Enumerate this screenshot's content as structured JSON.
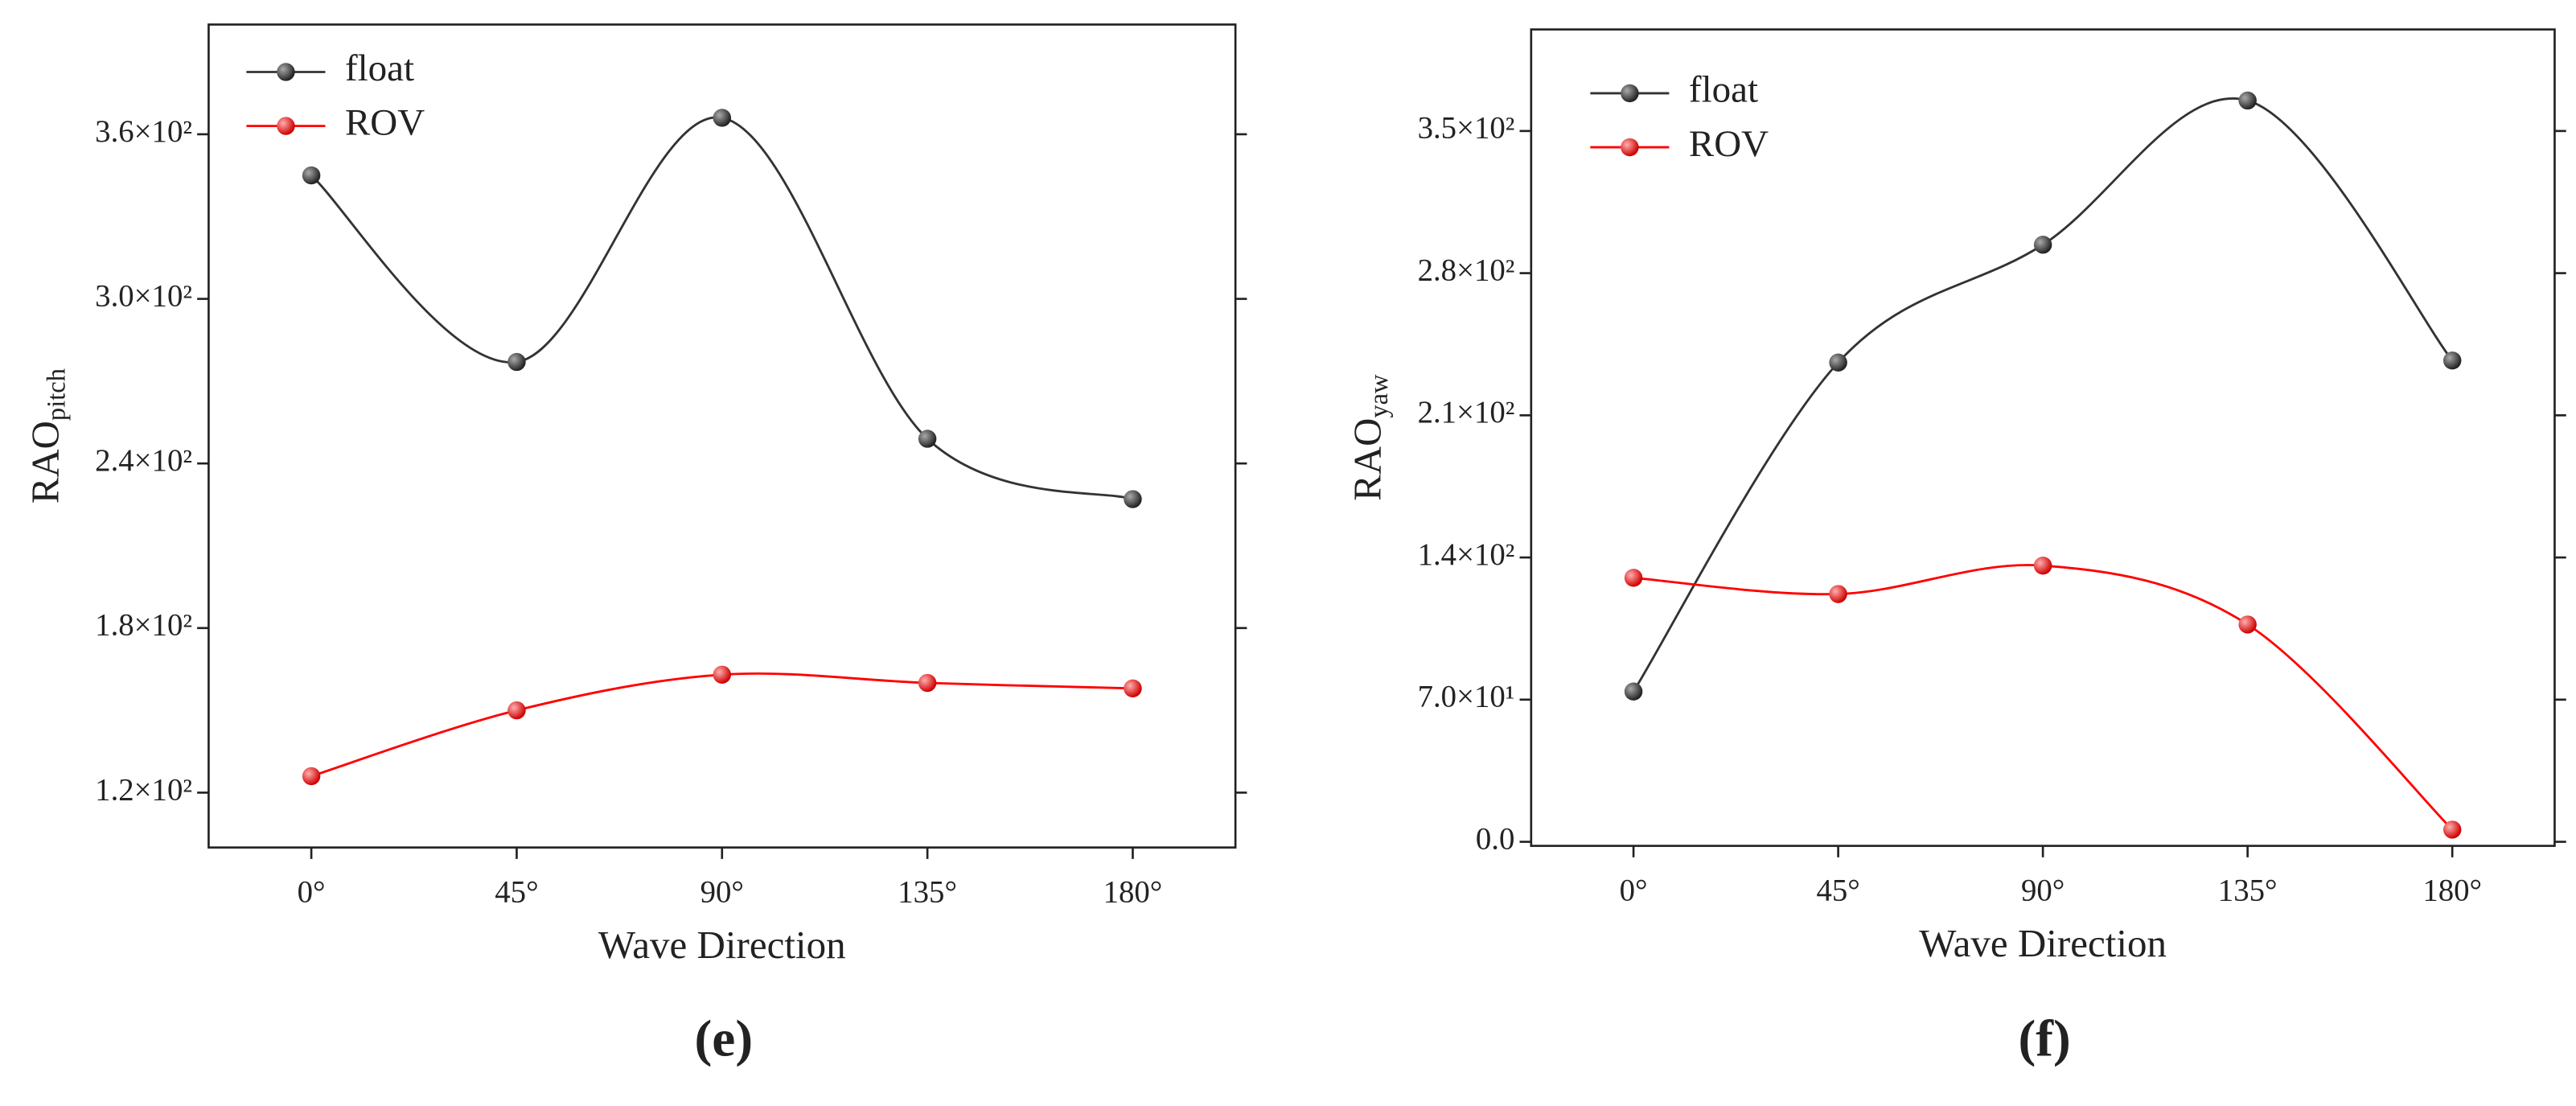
{
  "chart_data": [
    {
      "type": "line",
      "panel": "(e)",
      "xlabel": "Wave Direction",
      "ylabel": {
        "main": "RAO",
        "sub": "pitch"
      },
      "x": [
        0,
        45,
        90,
        135,
        180
      ],
      "xlim": [
        -22.5,
        202.5
      ],
      "xticks": [
        {
          "value": 0,
          "label": "0°"
        },
        {
          "value": 45,
          "label": "45°"
        },
        {
          "value": 90,
          "label": "90°"
        },
        {
          "value": 135,
          "label": "135°"
        },
        {
          "value": 180,
          "label": "180°"
        }
      ],
      "ylim": [
        100,
        400
      ],
      "yticks": [
        {
          "value": 120,
          "label": "1.2×10²"
        },
        {
          "value": 180,
          "label": "1.8×10²"
        },
        {
          "value": 240,
          "label": "2.4×10²"
        },
        {
          "value": 300,
          "label": "3.0×10²"
        },
        {
          "value": 360,
          "label": "3.6×10²"
        }
      ],
      "legend": "upper left",
      "series": [
        {
          "name": "float",
          "color": "#333333",
          "values": [
            345,
            277,
            366,
            249,
            227
          ]
        },
        {
          "name": "ROV",
          "color": "#ff0000",
          "values": [
            126,
            150,
            163,
            160,
            158
          ]
        }
      ]
    },
    {
      "type": "line",
      "panel": "(f)",
      "xlabel": "Wave Direction",
      "ylabel": {
        "main": "RAO",
        "sub": "yaw"
      },
      "x": [
        0,
        45,
        90,
        135,
        180
      ],
      "xlim": [
        -22.5,
        202.5
      ],
      "xticks": [
        {
          "value": 0,
          "label": "0°"
        },
        {
          "value": 45,
          "label": "45°"
        },
        {
          "value": 90,
          "label": "90°"
        },
        {
          "value": 135,
          "label": "135°"
        },
        {
          "value": 180,
          "label": "180°"
        }
      ],
      "ylim": [
        -2,
        400
      ],
      "yticks": [
        {
          "value": 0,
          "label": "0.0"
        },
        {
          "value": 70,
          "label": "7.0×10¹"
        },
        {
          "value": 140,
          "label": "1.4×10²"
        },
        {
          "value": 210,
          "label": "2.1×10²"
        },
        {
          "value": 280,
          "label": "2.8×10²"
        },
        {
          "value": 350,
          "label": "3.5×10²"
        }
      ],
      "legend": "upper left",
      "series": [
        {
          "name": "float",
          "color": "#333333",
          "values": [
            74,
            236,
            294,
            365,
            237
          ]
        },
        {
          "name": "ROV",
          "color": "#ff0000",
          "values": [
            130,
            122,
            136,
            107,
            6
          ]
        }
      ]
    }
  ]
}
